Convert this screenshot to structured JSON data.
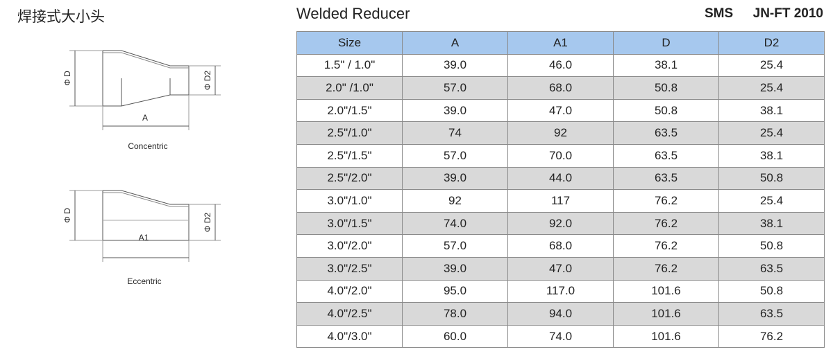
{
  "header": {
    "title_cn": "焊接式大小头",
    "title": "Welded Reducer",
    "standard": "SMS",
    "code": "JN-FT 2010"
  },
  "diagrams": {
    "concentric": {
      "label_d": "Φ D",
      "label_d2": "Φ D2",
      "label_length": "A",
      "caption": "Concentric"
    },
    "eccentric": {
      "label_d": "Φ D",
      "label_d2": "Φ D2",
      "label_length": "A1",
      "caption": "Eccentric"
    }
  },
  "table": {
    "columns": [
      "Size",
      "A",
      "A1",
      "D",
      "D2"
    ],
    "rows": [
      [
        "1.5\"  / 1.0\"",
        "39.0",
        "46.0",
        "38.1",
        "25.4"
      ],
      [
        "2.0\" /1.0\"",
        "57.0",
        "68.0",
        "50.8",
        "25.4"
      ],
      [
        "2.0\"/1.5\"",
        "39.0",
        "47.0",
        "50.8",
        "38.1"
      ],
      [
        "2.5\"/1.0\"",
        "74",
        "92",
        "63.5",
        "25.4"
      ],
      [
        "2.5\"/1.5\"",
        "57.0",
        "70.0",
        "63.5",
        "38.1"
      ],
      [
        "2.5\"/2.0\"",
        "39.0",
        "44.0",
        "63.5",
        "50.8"
      ],
      [
        "3.0\"/1.0\"",
        "92",
        "117",
        "76.2",
        "25.4"
      ],
      [
        "3.0\"/1.5\"",
        "74.0",
        "92.0",
        "76.2",
        "38.1"
      ],
      [
        "3.0\"/2.0\"",
        "57.0",
        "68.0",
        "76.2",
        "50.8"
      ],
      [
        "3.0\"/2.5\"",
        "39.0",
        "47.0",
        "76.2",
        "63.5"
      ],
      [
        "4.0\"/2.0\"",
        "95.0",
        "117.0",
        "101.6",
        "50.8"
      ],
      [
        "4.0\"/2.5\"",
        "78.0",
        "94.0",
        "101.6",
        "63.5"
      ],
      [
        "4.0\"/3.0\"",
        "60.0",
        "74.0",
        "101.6",
        "76.2"
      ]
    ]
  }
}
